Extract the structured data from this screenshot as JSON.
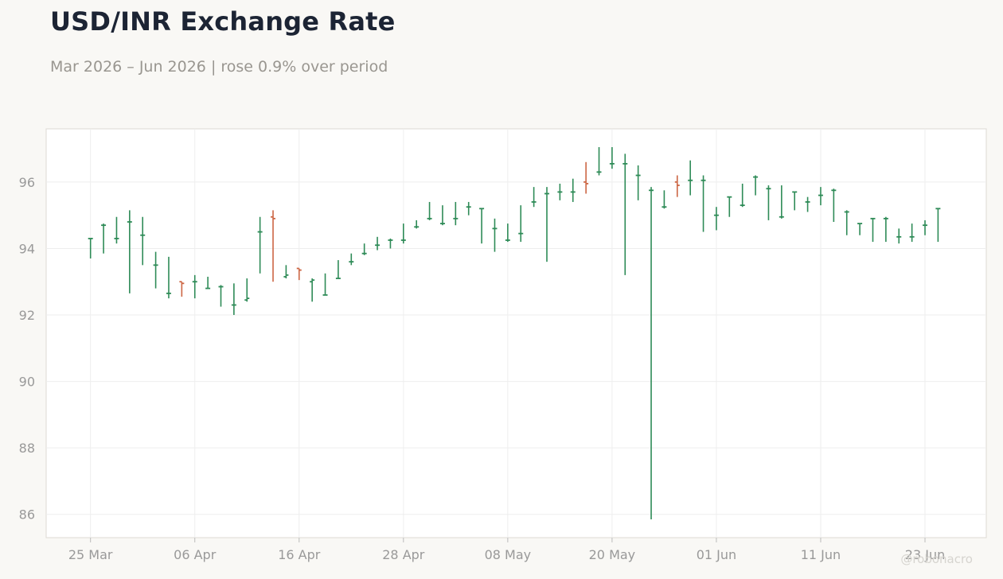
{
  "title": "USD/INR Exchange Rate",
  "subtitle": "Mar 2026 – Jun 2026 | rose 0.9% over period",
  "watermark": "@robonacro",
  "colors": {
    "up": "#2e8b57",
    "down": "#cc6644",
    "grid": "#eeeeee",
    "axis_text": "#999999",
    "plot_bg": "#ffffff",
    "page_bg": "#f9f8f5"
  },
  "chart_data": {
    "type": "ohlc",
    "title": "USD/INR Exchange Rate",
    "subtitle": "Mar 2026 – Jun 2026 | rose 0.9% over period",
    "x_tick_labels": [
      "25 Mar",
      "06 Apr",
      "16 Apr",
      "28 Apr",
      "08 May",
      "20 May",
      "01 Jun",
      "11 Jun",
      "23 Jun"
    ],
    "x_tick_positions": [
      0,
      8,
      16,
      24,
      32,
      40,
      48,
      56,
      64
    ],
    "y_ticks": [
      86,
      88,
      90,
      92,
      94,
      96
    ],
    "ylim": [
      85.3,
      97.6
    ],
    "xlim": [
      -3.4,
      68.7
    ],
    "grid": true,
    "bars": [
      {
        "i": 0,
        "o": 94.3,
        "h": 94.3,
        "l": 93.7,
        "c": 94.3
      },
      {
        "i": 1,
        "o": 94.7,
        "h": 94.75,
        "l": 93.85,
        "c": 94.7
      },
      {
        "i": 2,
        "o": 94.3,
        "h": 94.95,
        "l": 94.15,
        "c": 94.3
      },
      {
        "i": 3,
        "o": 94.8,
        "h": 95.15,
        "l": 92.65,
        "c": 94.8
      },
      {
        "i": 4,
        "o": 94.4,
        "h": 94.95,
        "l": 93.5,
        "c": 94.4
      },
      {
        "i": 5,
        "o": 93.5,
        "h": 93.9,
        "l": 92.8,
        "c": 93.5
      },
      {
        "i": 6,
        "o": 92.65,
        "h": 93.75,
        "l": 92.5,
        "c": 92.65
      },
      {
        "i": 7,
        "o": 93.0,
        "h": 93.0,
        "l": 92.55,
        "c": 92.95
      },
      {
        "i": 8,
        "o": 93.0,
        "h": 93.2,
        "l": 92.5,
        "c": 93.0
      },
      {
        "i": 9,
        "o": 92.8,
        "h": 93.15,
        "l": 92.8,
        "c": 92.8
      },
      {
        "i": 10,
        "o": 92.85,
        "h": 92.9,
        "l": 92.25,
        "c": 92.85
      },
      {
        "i": 11,
        "o": 92.3,
        "h": 92.95,
        "l": 92.0,
        "c": 92.3
      },
      {
        "i": 12,
        "o": 92.45,
        "h": 93.1,
        "l": 92.4,
        "c": 92.5
      },
      {
        "i": 13,
        "o": 94.5,
        "h": 94.95,
        "l": 93.25,
        "c": 94.5
      },
      {
        "i": 14,
        "o": 94.95,
        "h": 95.15,
        "l": 93.0,
        "c": 94.9
      },
      {
        "i": 15,
        "o": 93.15,
        "h": 93.5,
        "l": 93.1,
        "c": 93.2
      },
      {
        "i": 16,
        "o": 93.4,
        "h": 93.4,
        "l": 93.05,
        "c": 93.35
      },
      {
        "i": 17,
        "o": 93.0,
        "h": 93.1,
        "l": 92.4,
        "c": 93.05
      },
      {
        "i": 18,
        "o": 92.6,
        "h": 93.25,
        "l": 92.6,
        "c": 92.6
      },
      {
        "i": 19,
        "o": 93.1,
        "h": 93.65,
        "l": 93.1,
        "c": 93.1
      },
      {
        "i": 20,
        "o": 93.6,
        "h": 93.85,
        "l": 93.5,
        "c": 93.6
      },
      {
        "i": 21,
        "o": 93.85,
        "h": 94.15,
        "l": 93.8,
        "c": 93.85
      },
      {
        "i": 22,
        "o": 94.1,
        "h": 94.35,
        "l": 93.95,
        "c": 94.1
      },
      {
        "i": 23,
        "o": 94.25,
        "h": 94.3,
        "l": 94.0,
        "c": 94.25
      },
      {
        "i": 24,
        "o": 94.25,
        "h": 94.75,
        "l": 94.15,
        "c": 94.25
      },
      {
        "i": 25,
        "o": 94.65,
        "h": 94.85,
        "l": 94.6,
        "c": 94.65
      },
      {
        "i": 26,
        "o": 94.9,
        "h": 95.4,
        "l": 94.85,
        "c": 94.9
      },
      {
        "i": 27,
        "o": 94.75,
        "h": 95.3,
        "l": 94.7,
        "c": 94.75
      },
      {
        "i": 28,
        "o": 94.9,
        "h": 95.4,
        "l": 94.7,
        "c": 94.9
      },
      {
        "i": 29,
        "o": 95.25,
        "h": 95.4,
        "l": 95.0,
        "c": 95.25
      },
      {
        "i": 30,
        "o": 95.2,
        "h": 95.2,
        "l": 94.15,
        "c": 95.2
      },
      {
        "i": 31,
        "o": 94.6,
        "h": 94.9,
        "l": 93.9,
        "c": 94.6
      },
      {
        "i": 32,
        "o": 94.25,
        "h": 94.75,
        "l": 94.2,
        "c": 94.25
      },
      {
        "i": 33,
        "o": 94.45,
        "h": 95.3,
        "l": 94.2,
        "c": 94.45
      },
      {
        "i": 34,
        "o": 95.4,
        "h": 95.85,
        "l": 95.25,
        "c": 95.4
      },
      {
        "i": 35,
        "o": 95.65,
        "h": 95.85,
        "l": 93.6,
        "c": 95.65
      },
      {
        "i": 36,
        "o": 95.7,
        "h": 95.95,
        "l": 95.45,
        "c": 95.7
      },
      {
        "i": 37,
        "o": 95.7,
        "h": 96.1,
        "l": 95.4,
        "c": 95.7
      },
      {
        "i": 38,
        "o": 96.0,
        "h": 96.6,
        "l": 95.65,
        "c": 95.95
      },
      {
        "i": 39,
        "o": 96.3,
        "h": 97.05,
        "l": 96.2,
        "c": 96.3
      },
      {
        "i": 40,
        "o": 96.55,
        "h": 97.05,
        "l": 96.4,
        "c": 96.55
      },
      {
        "i": 41,
        "o": 96.55,
        "h": 96.85,
        "l": 93.2,
        "c": 96.55
      },
      {
        "i": 42,
        "o": 96.2,
        "h": 96.5,
        "l": 95.45,
        "c": 96.2
      },
      {
        "i": 43,
        "o": 95.75,
        "h": 95.85,
        "l": 85.85,
        "c": 95.75
      },
      {
        "i": 44,
        "o": 95.25,
        "h": 95.75,
        "l": 95.2,
        "c": 95.25
      },
      {
        "i": 45,
        "o": 96.0,
        "h": 96.2,
        "l": 95.55,
        "c": 95.9
      },
      {
        "i": 46,
        "o": 96.05,
        "h": 96.65,
        "l": 95.6,
        "c": 96.05
      },
      {
        "i": 47,
        "o": 96.05,
        "h": 96.2,
        "l": 94.5,
        "c": 96.05
      },
      {
        "i": 48,
        "o": 95.0,
        "h": 95.25,
        "l": 94.55,
        "c": 95.0
      },
      {
        "i": 49,
        "o": 95.55,
        "h": 95.55,
        "l": 94.95,
        "c": 95.55
      },
      {
        "i": 50,
        "o": 95.3,
        "h": 95.95,
        "l": 95.25,
        "c": 95.3
      },
      {
        "i": 51,
        "o": 96.15,
        "h": 96.2,
        "l": 95.6,
        "c": 96.15
      },
      {
        "i": 52,
        "o": 95.8,
        "h": 95.9,
        "l": 94.85,
        "c": 95.8
      },
      {
        "i": 53,
        "o": 94.95,
        "h": 95.9,
        "l": 94.9,
        "c": 94.95
      },
      {
        "i": 54,
        "o": 95.7,
        "h": 95.7,
        "l": 95.15,
        "c": 95.7
      },
      {
        "i": 55,
        "o": 95.4,
        "h": 95.55,
        "l": 95.1,
        "c": 95.4
      },
      {
        "i": 56,
        "o": 95.6,
        "h": 95.85,
        "l": 95.3,
        "c": 95.6
      },
      {
        "i": 57,
        "o": 95.75,
        "h": 95.8,
        "l": 94.8,
        "c": 95.75
      },
      {
        "i": 58,
        "o": 95.1,
        "h": 95.15,
        "l": 94.4,
        "c": 95.1
      },
      {
        "i": 59,
        "o": 94.75,
        "h": 94.75,
        "l": 94.4,
        "c": 94.75
      },
      {
        "i": 60,
        "o": 94.9,
        "h": 94.9,
        "l": 94.2,
        "c": 94.9
      },
      {
        "i": 61,
        "o": 94.9,
        "h": 94.95,
        "l": 94.2,
        "c": 94.9
      },
      {
        "i": 62,
        "o": 94.35,
        "h": 94.6,
        "l": 94.15,
        "c": 94.35
      },
      {
        "i": 63,
        "o": 94.35,
        "h": 94.75,
        "l": 94.2,
        "c": 94.35
      },
      {
        "i": 64,
        "o": 94.7,
        "h": 94.85,
        "l": 94.4,
        "c": 94.7
      },
      {
        "i": 65,
        "o": 95.2,
        "h": 95.2,
        "l": 94.2,
        "c": 95.2
      }
    ]
  }
}
